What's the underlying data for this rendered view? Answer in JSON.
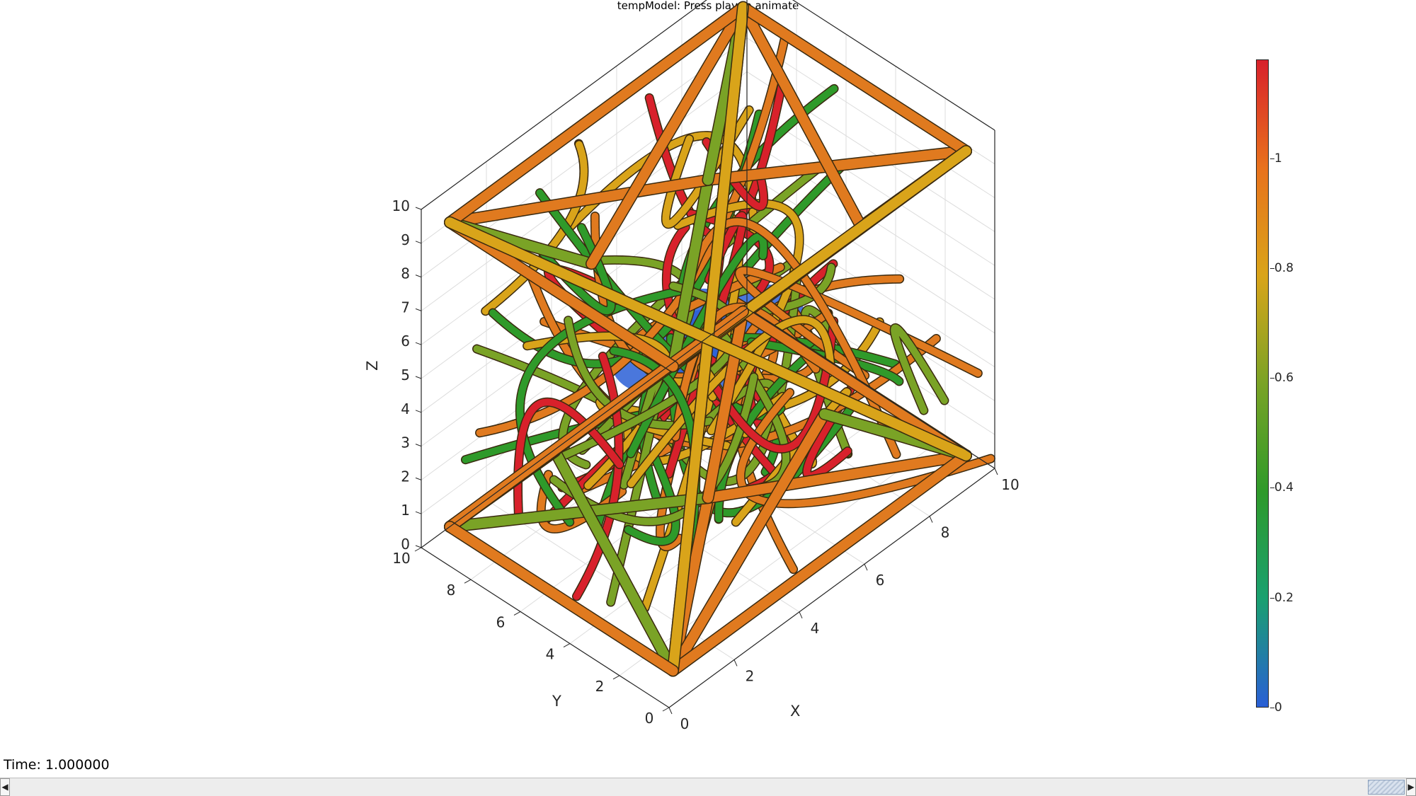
{
  "figure": {
    "title": "tempModel: Press play to animate"
  },
  "axes": {
    "x_label": "X",
    "y_label": "Y",
    "z_label": "Z",
    "x_ticks": [
      "0",
      "2",
      "4",
      "6",
      "8",
      "10"
    ],
    "y_ticks": [
      "0",
      "2",
      "4",
      "6",
      "8",
      "10"
    ],
    "z_ticks": [
      "0",
      "1",
      "2",
      "3",
      "4",
      "5",
      "6",
      "7",
      "8",
      "9",
      "10"
    ],
    "xlim": [
      0,
      10
    ],
    "ylim": [
      0,
      10
    ],
    "zlim": [
      0,
      10
    ],
    "grid": true
  },
  "colorbar": {
    "ticks": [
      "0",
      "0.2",
      "0.4",
      "0.6",
      "0.8",
      "1"
    ],
    "range": [
      0,
      1.18
    ],
    "colormap": [
      "#2a5fd6",
      "#1aa070",
      "#2f9a2a",
      "#7aa326",
      "#d9a41a",
      "#e8721d",
      "#d8212b"
    ]
  },
  "status": {
    "time_text": "Time: 1.000000"
  },
  "scrollbar": {
    "left_arrow": "◀",
    "right_arrow": "▶"
  },
  "colors": {
    "strut_orange": "#e07a1f",
    "strut_yellow": "#d9a41a",
    "strut_green": "#7aa326",
    "strut_red": "#d8212b",
    "core_blue": "#2a5fd6"
  }
}
